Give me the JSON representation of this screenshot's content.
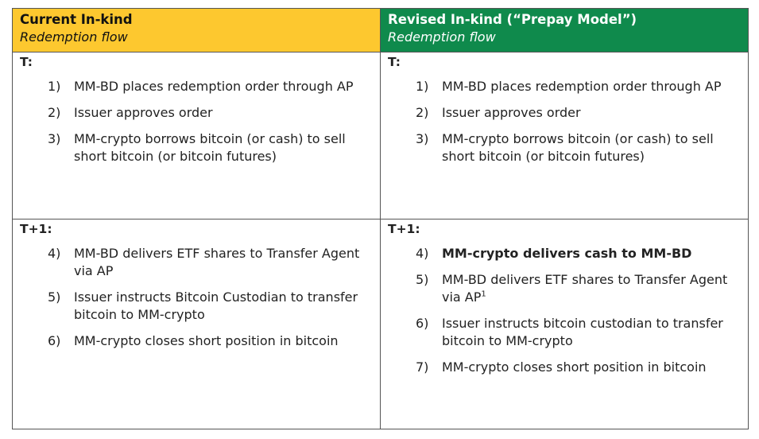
{
  "columns": [
    {
      "title": "Current In-kind",
      "subtitle": "Redemption flow",
      "sections": [
        {
          "label": "T:",
          "items": [
            {
              "number": "1)",
              "text": "MM-BD places redemption order through AP"
            },
            {
              "number": "2)",
              "text": "Issuer approves order"
            },
            {
              "number": "3)",
              "text": "MM-crypto borrows bitcoin (or cash) to sell short bitcoin (or bitcoin futures)"
            }
          ]
        },
        {
          "label": "T+1:",
          "items": [
            {
              "number": "4)",
              "text": "MM-BD delivers ETF shares to Transfer Agent via AP"
            },
            {
              "number": "5)",
              "text": "Issuer instructs Bitcoin Custodian to transfer bitcoin to MM-crypto"
            },
            {
              "number": "6)",
              "text": "MM-crypto closes short position in bitcoin"
            }
          ]
        }
      ]
    },
    {
      "title": "Revised In-kind (“Prepay Model”)",
      "subtitle": "Redemption flow",
      "sections": [
        {
          "label": "T:",
          "items": [
            {
              "number": "1)",
              "text": "MM-BD places redemption order through AP"
            },
            {
              "number": "2)",
              "text": "Issuer approves order"
            },
            {
              "number": "3)",
              "text": "MM-crypto borrows bitcoin (or cash) to sell short bitcoin (or bitcoin futures)"
            }
          ]
        },
        {
          "label": "T+1:",
          "items": [
            {
              "number": "4)",
              "text": "MM-crypto delivers cash to MM-BD",
              "bold": true
            },
            {
              "number": "5)",
              "text": "MM-BD delivers ETF shares to Transfer Agent via AP",
              "footnote": "1"
            },
            {
              "number": "6)",
              "text": "Issuer instructs bitcoin custodian to transfer bitcoin to MM-crypto"
            },
            {
              "number": "7)",
              "text": "MM-crypto closes short position in bitcoin"
            }
          ]
        }
      ]
    }
  ]
}
